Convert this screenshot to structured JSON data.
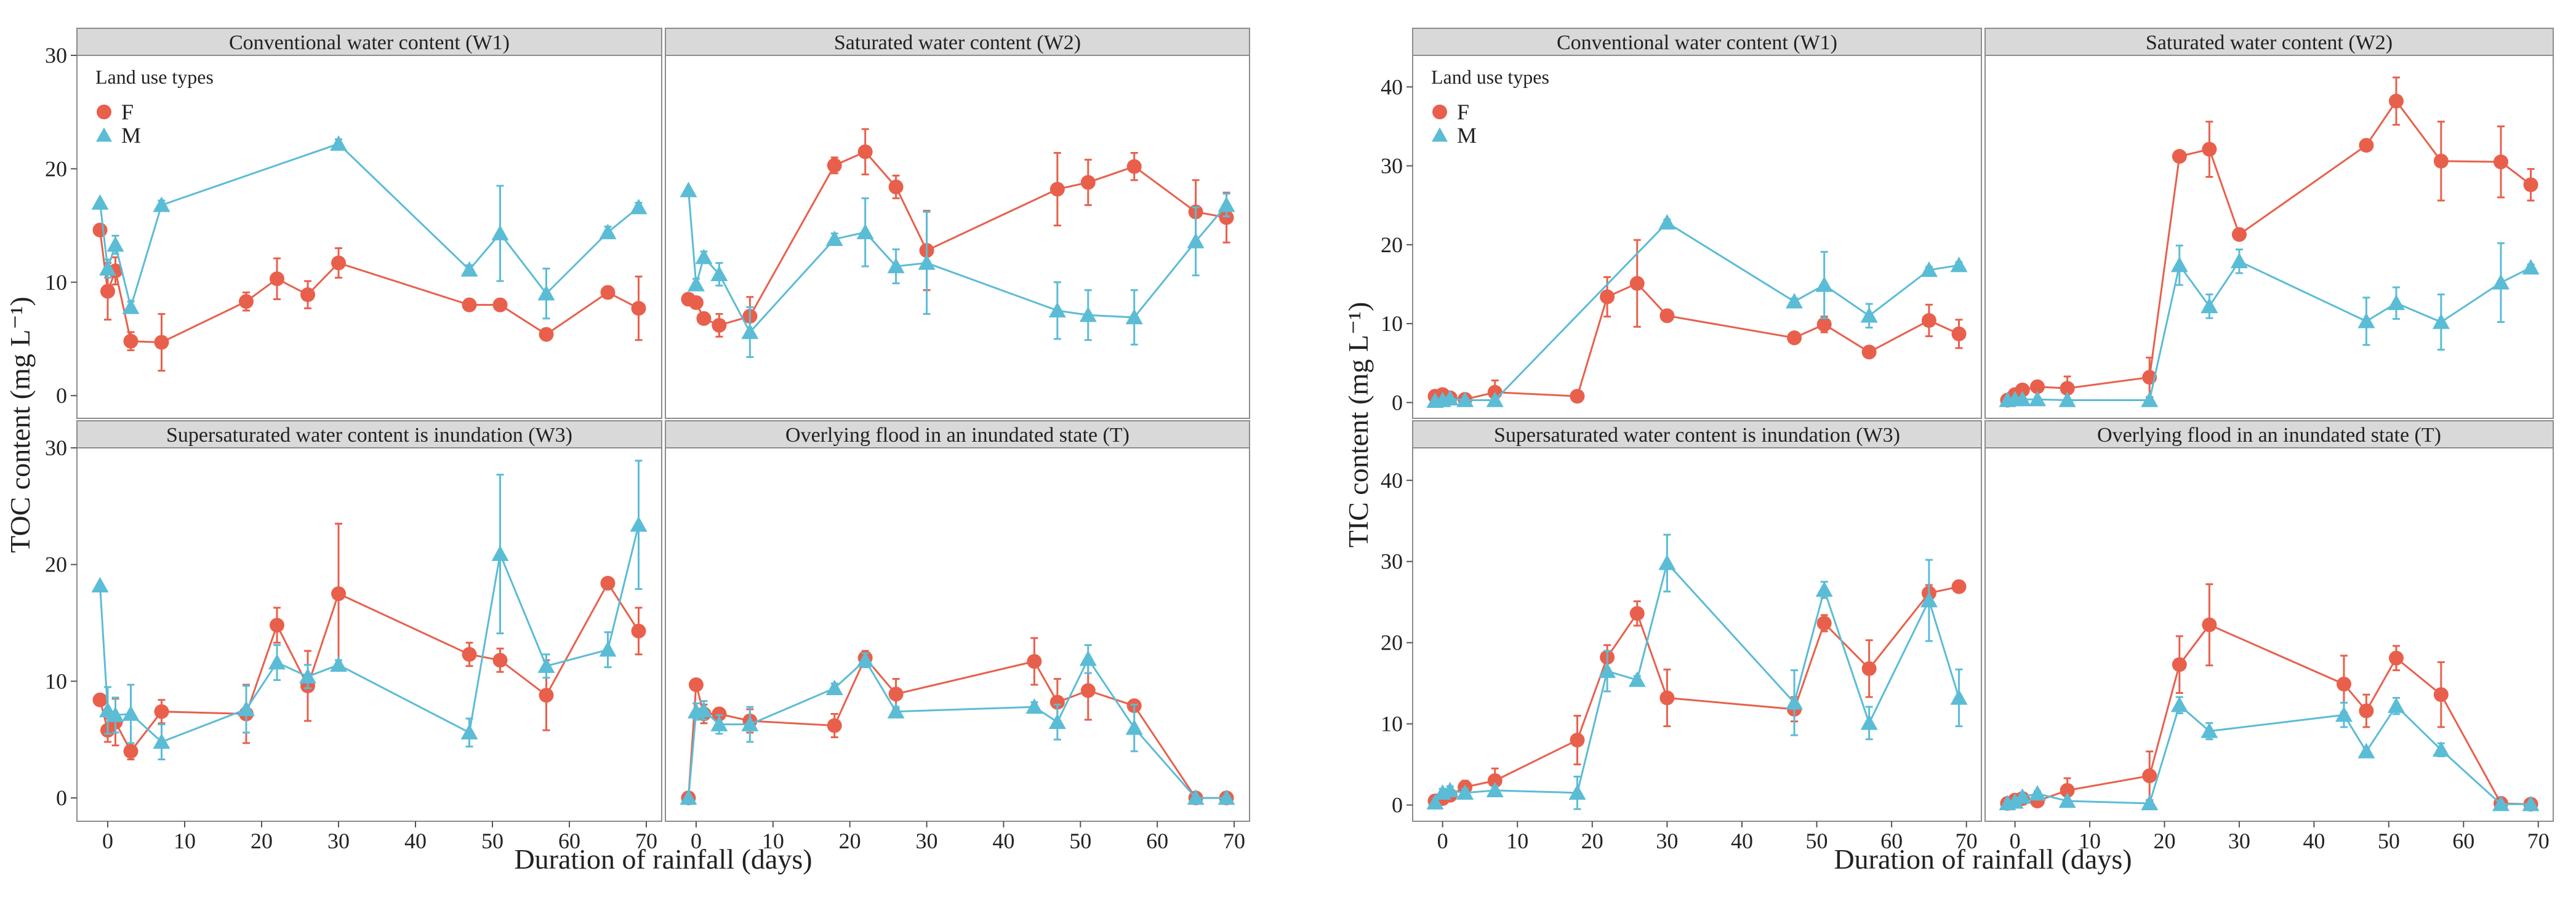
{
  "colors": {
    "F": "#e8604c",
    "M": "#5bbcd6",
    "panel_border": "#8c8c8c",
    "strip_bg": "#d9d9d9",
    "grid": "#ebebeb",
    "text": "#222222"
  },
  "legend": {
    "title": "Land use types",
    "items": [
      {
        "key": "F",
        "label": "F",
        "shape": "circle"
      },
      {
        "key": "M",
        "label": "M",
        "shape": "triangle"
      }
    ]
  },
  "chart_data": [
    {
      "type": "line",
      "title": "TOC",
      "ylabel": "TOC content (mg L⁻¹)",
      "xlabel": "Duration of rainfall (days)",
      "ylim": [
        -2,
        30
      ],
      "yticks": [
        "0",
        "10",
        "20",
        "30"
      ],
      "ytick_values": [
        0,
        10,
        20,
        30
      ],
      "xlim": [
        -4,
        72
      ],
      "xticks": [
        "0",
        "10",
        "20",
        "30",
        "40",
        "50",
        "60",
        "70"
      ],
      "xtick_values": [
        0,
        10,
        20,
        30,
        40,
        50,
        60,
        70
      ],
      "panels": [
        {
          "strip": "Conventional water content (W1)",
          "show_legend": true,
          "series": [
            {
              "name": "F",
              "x": [
                -1,
                0,
                1,
                3,
                7,
                18,
                22,
                26,
                30,
                47,
                51,
                57,
                65,
                69
              ],
              "y": [
                14.6,
                9.2,
                11,
                4.8,
                4.7,
                8.3,
                10.3,
                8.9,
                11.7,
                8,
                8,
                5.4,
                9.1,
                7.7
              ],
              "err": [
                0,
                2.5,
                1.2,
                0.8,
                2.5,
                0.8,
                1.8,
                1.2,
                1.3,
                0.4,
                0.4,
                0.4,
                0.5,
                2.8
              ]
            },
            {
              "name": "M",
              "x": [
                -1,
                0,
                1,
                3,
                7,
                30,
                47,
                51,
                57,
                65,
                69
              ],
              "y": [
                17,
                11.2,
                13.3,
                7.8,
                16.8,
                22.2,
                11.1,
                14.3,
                9,
                14.4,
                16.6
              ],
              "err": [
                0,
                0.8,
                0.8,
                0.5,
                0.4,
                0.4,
                0.4,
                4.2,
                2.2,
                0.5,
                0.4
              ]
            }
          ]
        },
        {
          "strip": "Saturated water content (W2)",
          "show_legend": false,
          "series": [
            {
              "name": "F",
              "x": [
                -1,
                0,
                1,
                3,
                7,
                18,
                22,
                26,
                30,
                47,
                51,
                57,
                65,
                69
              ],
              "y": [
                8.5,
                8.2,
                6.8,
                6.2,
                7,
                20.3,
                21.5,
                18.4,
                12.8,
                18.2,
                18.8,
                20.2,
                16.2,
                15.7
              ],
              "err": [
                0,
                0.5,
                0.4,
                1,
                1.7,
                0.7,
                2,
                1,
                3.5,
                3.2,
                2,
                1.2,
                2.8,
                2.2
              ]
            },
            {
              "name": "M",
              "x": [
                -1,
                0,
                1,
                3,
                7,
                18,
                22,
                26,
                30,
                47,
                51,
                57,
                65,
                69
              ],
              "y": [
                18.1,
                9.8,
                12.2,
                10.7,
                5.6,
                13.8,
                14.4,
                11.4,
                11.7,
                7.5,
                7.1,
                6.9,
                13.6,
                16.8
              ],
              "err": [
                0,
                0.5,
                0.5,
                1,
                2.2,
                0.5,
                3,
                1.5,
                4.5,
                2.5,
                2.2,
                2.4,
                3,
                1
              ]
            }
          ]
        },
        {
          "strip": "Supersaturated water content is  inundation (W3)",
          "show_legend": false,
          "series": [
            {
              "name": "F",
              "x": [
                -1,
                0,
                1,
                3,
                7,
                18,
                22,
                26,
                30,
                47,
                51,
                57,
                65,
                69
              ],
              "y": [
                8.4,
                5.8,
                6.5,
                4,
                7.4,
                7.2,
                14.8,
                9.6,
                17.5,
                12.3,
                11.8,
                8.8,
                18.4,
                14.3
              ],
              "err": [
                0,
                1,
                2,
                0.7,
                1,
                2.5,
                1.5,
                3,
                6,
                1,
                1,
                3,
                0.4,
                2
              ]
            },
            {
              "name": "M",
              "x": [
                -1,
                0,
                1,
                3,
                7,
                18,
                22,
                26,
                30,
                47,
                51,
                57,
                65,
                69
              ],
              "y": [
                18.2,
                7.5,
                7.1,
                7.2,
                4.8,
                7.6,
                11.6,
                10.4,
                11.4,
                5.6,
                20.9,
                11.3,
                12.7,
                23.4
              ],
              "err": [
                0,
                2,
                1.5,
                2.5,
                1.5,
                2,
                1.5,
                1,
                0.4,
                1.2,
                6.8,
                1,
                1.5,
                5.5
              ]
            }
          ]
        },
        {
          "strip": "Overlying flood in an inundated state (T)",
          "show_legend": false,
          "series": [
            {
              "name": "F",
              "x": [
                -1,
                0,
                1,
                3,
                7,
                18,
                22,
                26,
                44,
                47,
                51,
                57,
                65,
                69
              ],
              "y": [
                0,
                9.7,
                7.2,
                7.2,
                6.6,
                6.2,
                12,
                8.9,
                11.7,
                8.2,
                9.2,
                7.9,
                0,
                0
              ],
              "err": [
                0,
                0.4,
                0.8,
                0.5,
                1,
                1,
                0.6,
                1.3,
                2,
                2,
                2.5,
                0.4,
                0,
                0
              ]
            },
            {
              "name": "M",
              "x": [
                -1,
                0,
                1,
                3,
                7,
                18,
                22,
                26,
                44,
                47,
                51,
                57,
                65,
                69
              ],
              "y": [
                0,
                7.4,
                7.5,
                6.3,
                6.3,
                9.4,
                11.8,
                7.4,
                7.8,
                6.5,
                11.9,
                6,
                0,
                0
              ],
              "err": [
                0,
                0.7,
                0.8,
                0.8,
                1.5,
                0.4,
                0.6,
                0.4,
                0.4,
                1.5,
                1.2,
                2,
                0,
                0
              ]
            }
          ]
        }
      ]
    },
    {
      "type": "line",
      "title": "TIC",
      "ylabel": "TIC content (mg L⁻¹)",
      "xlabel": "Duration of rainfall (days)",
      "ylim": [
        -2,
        44
      ],
      "yticks": [
        "0",
        "10",
        "20",
        "30",
        "40"
      ],
      "ytick_values": [
        0,
        10,
        20,
        30,
        40
      ],
      "xlim": [
        -4,
        72
      ],
      "xticks": [
        "0",
        "10",
        "20",
        "30",
        "40",
        "50",
        "60",
        "70"
      ],
      "xtick_values": [
        0,
        10,
        20,
        30,
        40,
        50,
        60,
        70
      ],
      "panels": [
        {
          "strip": "Conventional water content (W1)",
          "show_legend": true,
          "series": [
            {
              "name": "F",
              "x": [
                -1,
                0,
                1,
                3,
                7,
                18,
                22,
                26,
                30,
                47,
                51,
                57,
                65,
                69
              ],
              "y": [
                0.8,
                1,
                0.6,
                0.4,
                1.3,
                0.8,
                13.4,
                15.1,
                11,
                8.2,
                9.9,
                6.4,
                10.4,
                8.7
              ],
              "err": [
                0,
                0.4,
                0.4,
                0.3,
                1.5,
                0.3,
                2.5,
                5.5,
                0.4,
                0.4,
                1,
                0.4,
                2,
                1.8
              ]
            },
            {
              "name": "M",
              "x": [
                -1,
                0,
                1,
                3,
                7,
                30,
                47,
                51,
                57,
                65,
                69
              ],
              "y": [
                0.2,
                0.3,
                0.5,
                0.3,
                0.3,
                22.8,
                12.8,
                14.9,
                11,
                16.8,
                17.4
              ],
              "err": [
                0,
                0.2,
                0.2,
                0.2,
                0.2,
                0.4,
                0.4,
                4.2,
                1.5,
                0.4,
                0.4
              ]
            }
          ]
        },
        {
          "strip": "Saturated water content (W2)",
          "show_legend": false,
          "series": [
            {
              "name": "F",
              "x": [
                -1,
                0,
                1,
                3,
                7,
                18,
                22,
                26,
                30,
                47,
                51,
                57,
                65,
                69
              ],
              "y": [
                0.3,
                1,
                1.6,
                2,
                1.8,
                3.2,
                31.2,
                32.1,
                21.3,
                32.6,
                38.2,
                30.6,
                30.5,
                27.6
              ],
              "err": [
                0,
                0.5,
                0.5,
                0.5,
                1.5,
                2.5,
                0.5,
                3.5,
                0.5,
                0.5,
                3,
                5,
                4.5,
                2
              ]
            },
            {
              "name": "M",
              "x": [
                -1,
                0,
                1,
                3,
                7,
                18,
                22,
                26,
                30,
                47,
                51,
                57,
                65,
                69
              ],
              "y": [
                0.3,
                0.4,
                0.4,
                0.4,
                0.3,
                0.3,
                17.4,
                12.2,
                17.9,
                10.3,
                12.6,
                10.2,
                15.2,
                17.1
              ],
              "err": [
                0,
                0.2,
                0.2,
                0.2,
                0.2,
                0.2,
                2.5,
                1.5,
                1.5,
                3,
                2,
                3.5,
                5,
                0.4
              ]
            }
          ]
        },
        {
          "strip": "Supersaturated water content is  inundation (W3)",
          "show_legend": false,
          "series": [
            {
              "name": "F",
              "x": [
                -1,
                0,
                1,
                3,
                7,
                18,
                22,
                26,
                30,
                47,
                51,
                57,
                65,
                69
              ],
              "y": [
                0.5,
                0.8,
                1.2,
                2.2,
                3,
                8,
                18.2,
                23.6,
                13.2,
                11.8,
                22.4,
                16.8,
                26.1,
                26.9
              ],
              "err": [
                0,
                0.4,
                0.5,
                0.8,
                1.5,
                3,
                1.5,
                1.5,
                3.5,
                1.5,
                1,
                3.5,
                1,
                0.5
              ]
            },
            {
              "name": "M",
              "x": [
                -1,
                0,
                1,
                3,
                7,
                18,
                22,
                26,
                30,
                47,
                51,
                57,
                65,
                69
              ],
              "y": [
                0.3,
                1.5,
                1.8,
                1.5,
                1.8,
                1.5,
                16.5,
                15.4,
                29.8,
                12.6,
                26.5,
                10.1,
                25.2,
                13.2
              ],
              "err": [
                0,
                0.5,
                0.5,
                0.5,
                0.5,
                2,
                2.5,
                0.5,
                3.5,
                4,
                1,
                2,
                5,
                3.5
              ]
            }
          ]
        },
        {
          "strip": "Overlying flood in an inundated state (T)",
          "show_legend": false,
          "series": [
            {
              "name": "F",
              "x": [
                -1,
                0,
                1,
                3,
                7,
                18,
                22,
                26,
                44,
                47,
                51,
                57,
                65,
                69
              ],
              "y": [
                0.2,
                0.6,
                0.8,
                0.5,
                1.8,
                3.6,
                17.3,
                22.2,
                14.9,
                11.6,
                18.1,
                13.6,
                0.2,
                0.1
              ],
              "err": [
                0,
                0.3,
                0.3,
                0.3,
                1.5,
                3,
                3.5,
                5,
                3.5,
                2,
                1.5,
                4,
                0.1,
                0.1
              ]
            },
            {
              "name": "M",
              "x": [
                -1,
                0,
                1,
                3,
                7,
                18,
                22,
                26,
                44,
                47,
                51,
                57,
                65,
                69
              ],
              "y": [
                0.2,
                0.4,
                1,
                1.4,
                0.5,
                0.2,
                12.3,
                9.1,
                11.1,
                6.6,
                12.2,
                6.8,
                0.1,
                0.1
              ],
              "err": [
                0,
                0.2,
                0.3,
                0.3,
                0.2,
                0.1,
                1,
                1,
                1.5,
                0.5,
                1,
                0.8,
                0.1,
                0.1
              ]
            }
          ]
        }
      ]
    }
  ]
}
